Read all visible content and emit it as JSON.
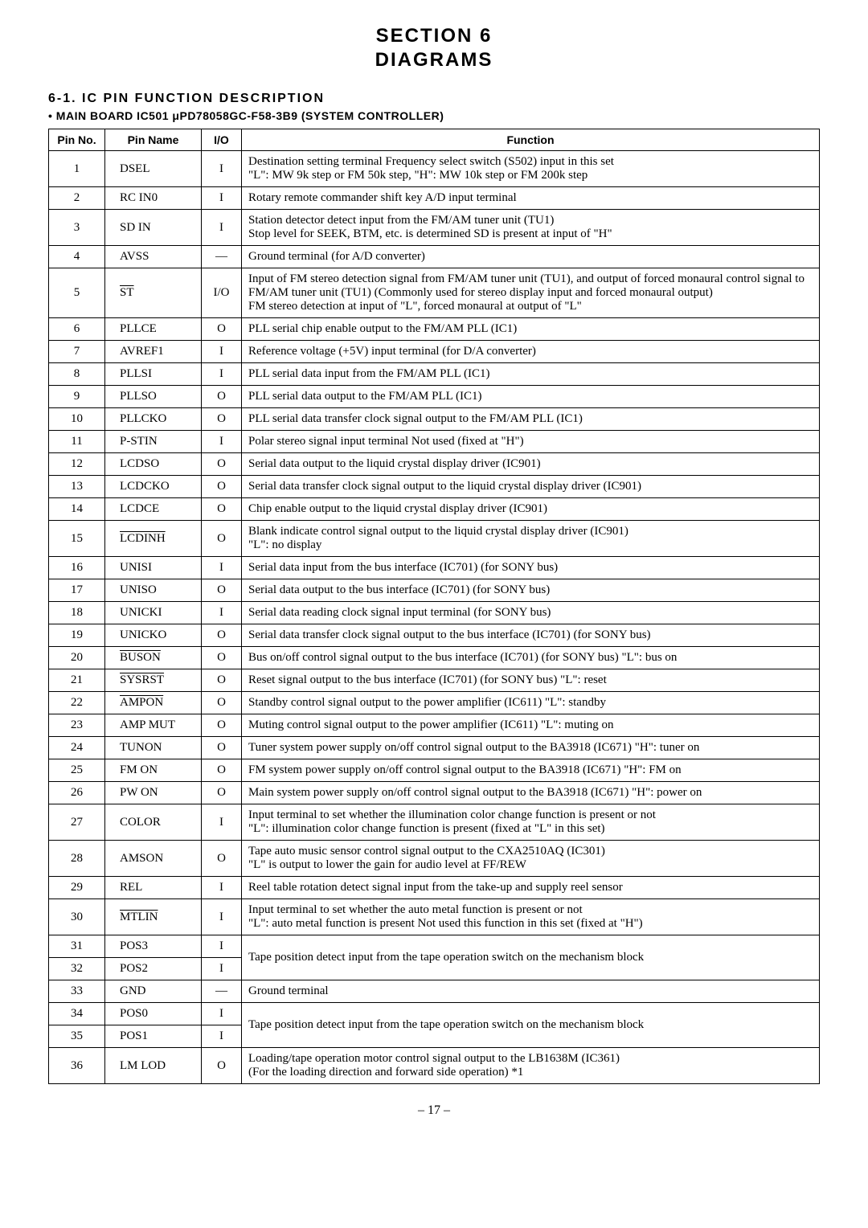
{
  "section_title_line1": "SECTION 6",
  "section_title_line2": "DIAGRAMS",
  "subsection": "6-1.  IC  PIN  FUNCTION  DESCRIPTION",
  "board_line": "• MAIN BOARD  IC501  μPD78058GC-F58-3B9 (SYSTEM CONTROLLER)",
  "headers": {
    "pinno": "Pin No.",
    "pinname": "Pin Name",
    "io": "I/O",
    "func": "Function"
  },
  "rows": [
    {
      "no": "1",
      "name": "DSEL",
      "io": "I",
      "func": "Destination setting terminal    Frequency select switch (S502) input in this set\n\"L\": MW 9k step or FM 50k step, \"H\": MW 10k step or FM 200k step"
    },
    {
      "no": "2",
      "name": "RC IN0",
      "io": "I",
      "func": "Rotary remote commander shift key A/D input terminal"
    },
    {
      "no": "3",
      "name": "SD IN",
      "io": "I",
      "func": "Station detector detect input from the FM/AM tuner unit (TU1)\nStop level for SEEK, BTM, etc. is determined    SD is present at input of \"H\""
    },
    {
      "no": "4",
      "name": "AVSS",
      "io": "—",
      "func": "Ground terminal (for A/D converter)"
    },
    {
      "no": "5",
      "name": "ST",
      "name_overline": true,
      "io": "I/O",
      "func": "Input of FM stereo detection signal from FM/AM tuner unit (TU1), and output of forced monaural control signal to FM/AM tuner unit (TU1)  (Commonly used for stereo display input and forced monaural output)\nFM stereo detection at input of \"L\", forced monaural at output of \"L\""
    },
    {
      "no": "6",
      "name": "PLLCE",
      "io": "O",
      "func": "PLL serial chip enable output to the FM/AM PLL (IC1)"
    },
    {
      "no": "7",
      "name": "AVREF1",
      "io": "I",
      "func": "Reference voltage (+5V) input terminal (for D/A converter)"
    },
    {
      "no": "8",
      "name": "PLLSI",
      "io": "I",
      "func": "PLL serial data input from the FM/AM PLL (IC1)"
    },
    {
      "no": "9",
      "name": "PLLSO",
      "io": "O",
      "func": "PLL serial data output to the FM/AM PLL (IC1)"
    },
    {
      "no": "10",
      "name": "PLLCKO",
      "io": "O",
      "func": "PLL serial data transfer clock signal output to the FM/AM PLL (IC1)"
    },
    {
      "no": "11",
      "name": "P-STIN",
      "io": "I",
      "func": "Polar stereo signal input terminal    Not used (fixed at \"H\")"
    },
    {
      "no": "12",
      "name": "LCDSO",
      "io": "O",
      "func": "Serial data output to the liquid crystal display driver (IC901)"
    },
    {
      "no": "13",
      "name": "LCDCKO",
      "io": "O",
      "func": "Serial data transfer clock signal output to the liquid crystal display driver (IC901)"
    },
    {
      "no": "14",
      "name": "LCDCE",
      "io": "O",
      "func": "Chip enable output to the liquid crystal display driver (IC901)"
    },
    {
      "no": "15",
      "name": "LCDINH",
      "name_overline": true,
      "io": "O",
      "func": "Blank indicate control signal output to the liquid crystal display driver (IC901)\n\"L\": no display"
    },
    {
      "no": "16",
      "name": "UNISI",
      "io": "I",
      "func": "Serial data input from the bus interface (IC701) (for SONY bus)"
    },
    {
      "no": "17",
      "name": "UNISO",
      "io": "O",
      "func": "Serial data output to the bus interface (IC701) (for SONY bus)"
    },
    {
      "no": "18",
      "name": "UNICKI",
      "io": "I",
      "func": "Serial data reading clock signal input terminal (for SONY bus)"
    },
    {
      "no": "19",
      "name": "UNICKO",
      "io": "O",
      "func": "Serial data transfer clock signal output to the bus interface (IC701) (for SONY bus)"
    },
    {
      "no": "20",
      "name": "BUSON",
      "name_overline": true,
      "io": "O",
      "func": "Bus on/off control signal output to the bus interface (IC701) (for SONY bus)    \"L\": bus on"
    },
    {
      "no": "21",
      "name": "SYSRST",
      "name_overline": true,
      "io": "O",
      "func": "Reset signal output to the bus interface (IC701) (for SONY bus)    \"L\": reset"
    },
    {
      "no": "22",
      "name": "AMPON",
      "name_overline": true,
      "io": "O",
      "func": "Standby control signal output to the power amplifier (IC611)    \"L\": standby"
    },
    {
      "no": "23",
      "name": "AMP MUT",
      "io": "O",
      "func": "Muting control signal output to the power amplifier (IC611)    \"L\": muting on"
    },
    {
      "no": "24",
      "name": "TUNON",
      "io": "O",
      "func": "Tuner system power supply on/off control signal output to the BA3918 (IC671)    \"H\": tuner on"
    },
    {
      "no": "25",
      "name": "FM ON",
      "io": "O",
      "func": "FM system power supply on/off control signal output to the BA3918 (IC671)    \"H\": FM on"
    },
    {
      "no": "26",
      "name": "PW ON",
      "io": "O",
      "func": "Main system power supply on/off control signal output to the BA3918 (IC671)    \"H\": power on"
    },
    {
      "no": "27",
      "name": "COLOR",
      "io": "I",
      "func": "Input terminal to set whether the illumination color change function is present or not\n\"L\": illumination color change function is present (fixed at \"L\" in this set)"
    },
    {
      "no": "28",
      "name": "AMSON",
      "io": "O",
      "func": "Tape auto music sensor control signal output to the CXA2510AQ (IC301)\n\"L\" is output to lower the gain for audio level at FF/REW"
    },
    {
      "no": "29",
      "name": "REL",
      "io": "I",
      "func": "Reel table rotation detect signal input from the take-up and supply reel sensor"
    },
    {
      "no": "30",
      "name": "MTLIN",
      "name_overline": true,
      "io": "I",
      "func": "Input terminal to set whether the auto metal function is present or not\n\"L\": auto metal function is present    Not used this function in this set (fixed at \"H\")"
    },
    {
      "no": "31",
      "name": "POS3",
      "io": "I",
      "func": "",
      "merge_top": true
    },
    {
      "no": "32",
      "name": "POS2",
      "io": "I",
      "func": "Tape position detect input from the tape operation switch on the mechanism block",
      "merge_bottom": true
    },
    {
      "no": "33",
      "name": "GND",
      "io": "—",
      "func": "Ground terminal"
    },
    {
      "no": "34",
      "name": "POS0",
      "io": "I",
      "func": "",
      "merge_top": true
    },
    {
      "no": "35",
      "name": "POS1",
      "io": "I",
      "func": "Tape position detect input from the tape operation switch on the mechanism block",
      "merge_bottom": true
    },
    {
      "no": "36",
      "name": "LM LOD",
      "io": "O",
      "func": "Loading/tape operation motor control signal output to the LB1638M (IC361)\n(For the loading direction and forward side operation)    *1"
    }
  ],
  "page_number": "– 17 –",
  "styling": {
    "background_color": "#ffffff",
    "text_color": "#000000",
    "border_color": "#000000",
    "title_fontsize": 24,
    "body_fontsize": 15,
    "header_fontsize": 14
  }
}
